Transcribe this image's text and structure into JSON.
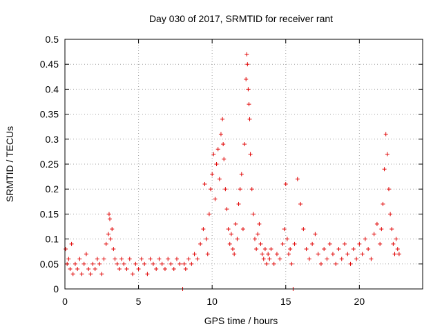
{
  "chart_data": {
    "type": "scatter",
    "title": "Day 030 of 2017, SRMTID for receiver rant",
    "xlabel": "GPS time / hours",
    "ylabel": "SRMTID / TECUs",
    "xlim": [
      0,
      24.3
    ],
    "ylim": [
      0,
      0.5
    ],
    "xticks": [
      0,
      5,
      10,
      15,
      20
    ],
    "xtick_labels": [
      "0",
      "5",
      "10",
      "15",
      "20"
    ],
    "yticks": [
      0,
      0.05,
      0.1,
      0.15,
      0.2,
      0.25,
      0.3,
      0.35,
      0.4,
      0.45,
      0.5
    ],
    "ytick_labels": [
      "0",
      "0.05",
      "0.1",
      "0.15",
      "0.2",
      "0.25",
      "0.3",
      "0.35",
      "0.4",
      "0.45",
      "0.5"
    ],
    "grid": true,
    "marker": "plus",
    "marker_color": "#e00000",
    "series": [
      {
        "name": "SRMTID",
        "x": [
          0.05,
          0.15,
          0.25,
          0.35,
          0.45,
          0.55,
          0.7,
          0.85,
          1.0,
          1.15,
          1.3,
          1.45,
          1.6,
          1.75,
          1.9,
          2.05,
          2.2,
          2.35,
          2.5,
          2.65,
          2.8,
          2.95,
          3.0,
          3.05,
          3.1,
          3.2,
          3.3,
          3.4,
          3.55,
          3.7,
          3.85,
          4.0,
          4.2,
          4.4,
          4.6,
          4.8,
          5.0,
          5.2,
          5.4,
          5.6,
          5.8,
          6.0,
          6.2,
          6.4,
          6.6,
          6.8,
          7.0,
          7.2,
          7.4,
          7.6,
          7.8,
          8.0,
          8.1,
          8.2,
          8.4,
          8.6,
          8.8,
          9.0,
          9.2,
          9.4,
          9.5,
          9.6,
          9.7,
          9.8,
          9.9,
          10.0,
          10.1,
          10.2,
          10.3,
          10.4,
          10.5,
          10.6,
          10.7,
          10.75,
          10.8,
          10.9,
          11.0,
          11.1,
          11.2,
          11.3,
          11.4,
          11.5,
          11.6,
          11.7,
          11.8,
          11.9,
          12.0,
          12.1,
          12.2,
          12.3,
          12.35,
          12.4,
          12.45,
          12.5,
          12.55,
          12.6,
          12.7,
          12.8,
          12.9,
          13.0,
          13.1,
          13.2,
          13.3,
          13.4,
          13.5,
          13.6,
          13.7,
          13.8,
          13.9,
          14.0,
          14.2,
          14.4,
          14.6,
          14.8,
          14.9,
          15.0,
          15.1,
          15.2,
          15.3,
          15.4,
          15.5,
          15.6,
          15.8,
          16.0,
          16.2,
          16.4,
          16.6,
          16.8,
          17.0,
          17.2,
          17.4,
          17.6,
          17.8,
          18.0,
          18.2,
          18.4,
          18.6,
          18.8,
          19.0,
          19.2,
          19.4,
          19.6,
          19.8,
          20.0,
          20.2,
          20.4,
          20.6,
          20.8,
          21.0,
          21.2,
          21.4,
          21.5,
          21.6,
          21.7,
          21.8,
          21.9,
          22.0,
          22.1,
          22.2,
          22.3,
          22.4,
          22.5,
          22.6,
          22.7
        ],
        "y": [
          0.08,
          0.05,
          0.06,
          0.04,
          0.09,
          0.03,
          0.05,
          0.04,
          0.06,
          0.03,
          0.05,
          0.07,
          0.04,
          0.03,
          0.05,
          0.04,
          0.06,
          0.05,
          0.03,
          0.06,
          0.09,
          0.11,
          0.15,
          0.14,
          0.1,
          0.12,
          0.08,
          0.06,
          0.05,
          0.04,
          0.06,
          0.05,
          0.04,
          0.06,
          0.03,
          0.05,
          0.04,
          0.06,
          0.05,
          0.03,
          0.06,
          0.05,
          0.04,
          0.06,
          0.05,
          0.04,
          0.06,
          0.05,
          0.04,
          0.06,
          0.05,
          0.0,
          0.05,
          0.04,
          0.06,
          0.05,
          0.07,
          0.06,
          0.09,
          0.12,
          0.21,
          0.1,
          0.07,
          0.15,
          0.2,
          0.23,
          0.27,
          0.18,
          0.25,
          0.28,
          0.22,
          0.31,
          0.34,
          0.29,
          0.26,
          0.2,
          0.16,
          0.12,
          0.09,
          0.11,
          0.08,
          0.07,
          0.13,
          0.1,
          0.17,
          0.2,
          0.23,
          0.12,
          0.29,
          0.42,
          0.47,
          0.45,
          0.4,
          0.37,
          0.34,
          0.27,
          0.2,
          0.15,
          0.1,
          0.08,
          0.11,
          0.13,
          0.09,
          0.07,
          0.06,
          0.08,
          0.05,
          0.07,
          0.06,
          0.08,
          0.05,
          0.07,
          0.06,
          0.09,
          0.12,
          0.21,
          0.1,
          0.07,
          0.08,
          0.05,
          0.0,
          0.09,
          0.22,
          0.17,
          0.12,
          0.08,
          0.06,
          0.09,
          0.11,
          0.07,
          0.05,
          0.08,
          0.06,
          0.09,
          0.07,
          0.05,
          0.08,
          0.06,
          0.09,
          0.07,
          0.05,
          0.08,
          0.06,
          0.09,
          0.07,
          0.1,
          0.08,
          0.06,
          0.11,
          0.13,
          0.09,
          0.12,
          0.17,
          0.24,
          0.31,
          0.27,
          0.2,
          0.15,
          0.12,
          0.09,
          0.07,
          0.1,
          0.08,
          0.07
        ]
      }
    ]
  }
}
